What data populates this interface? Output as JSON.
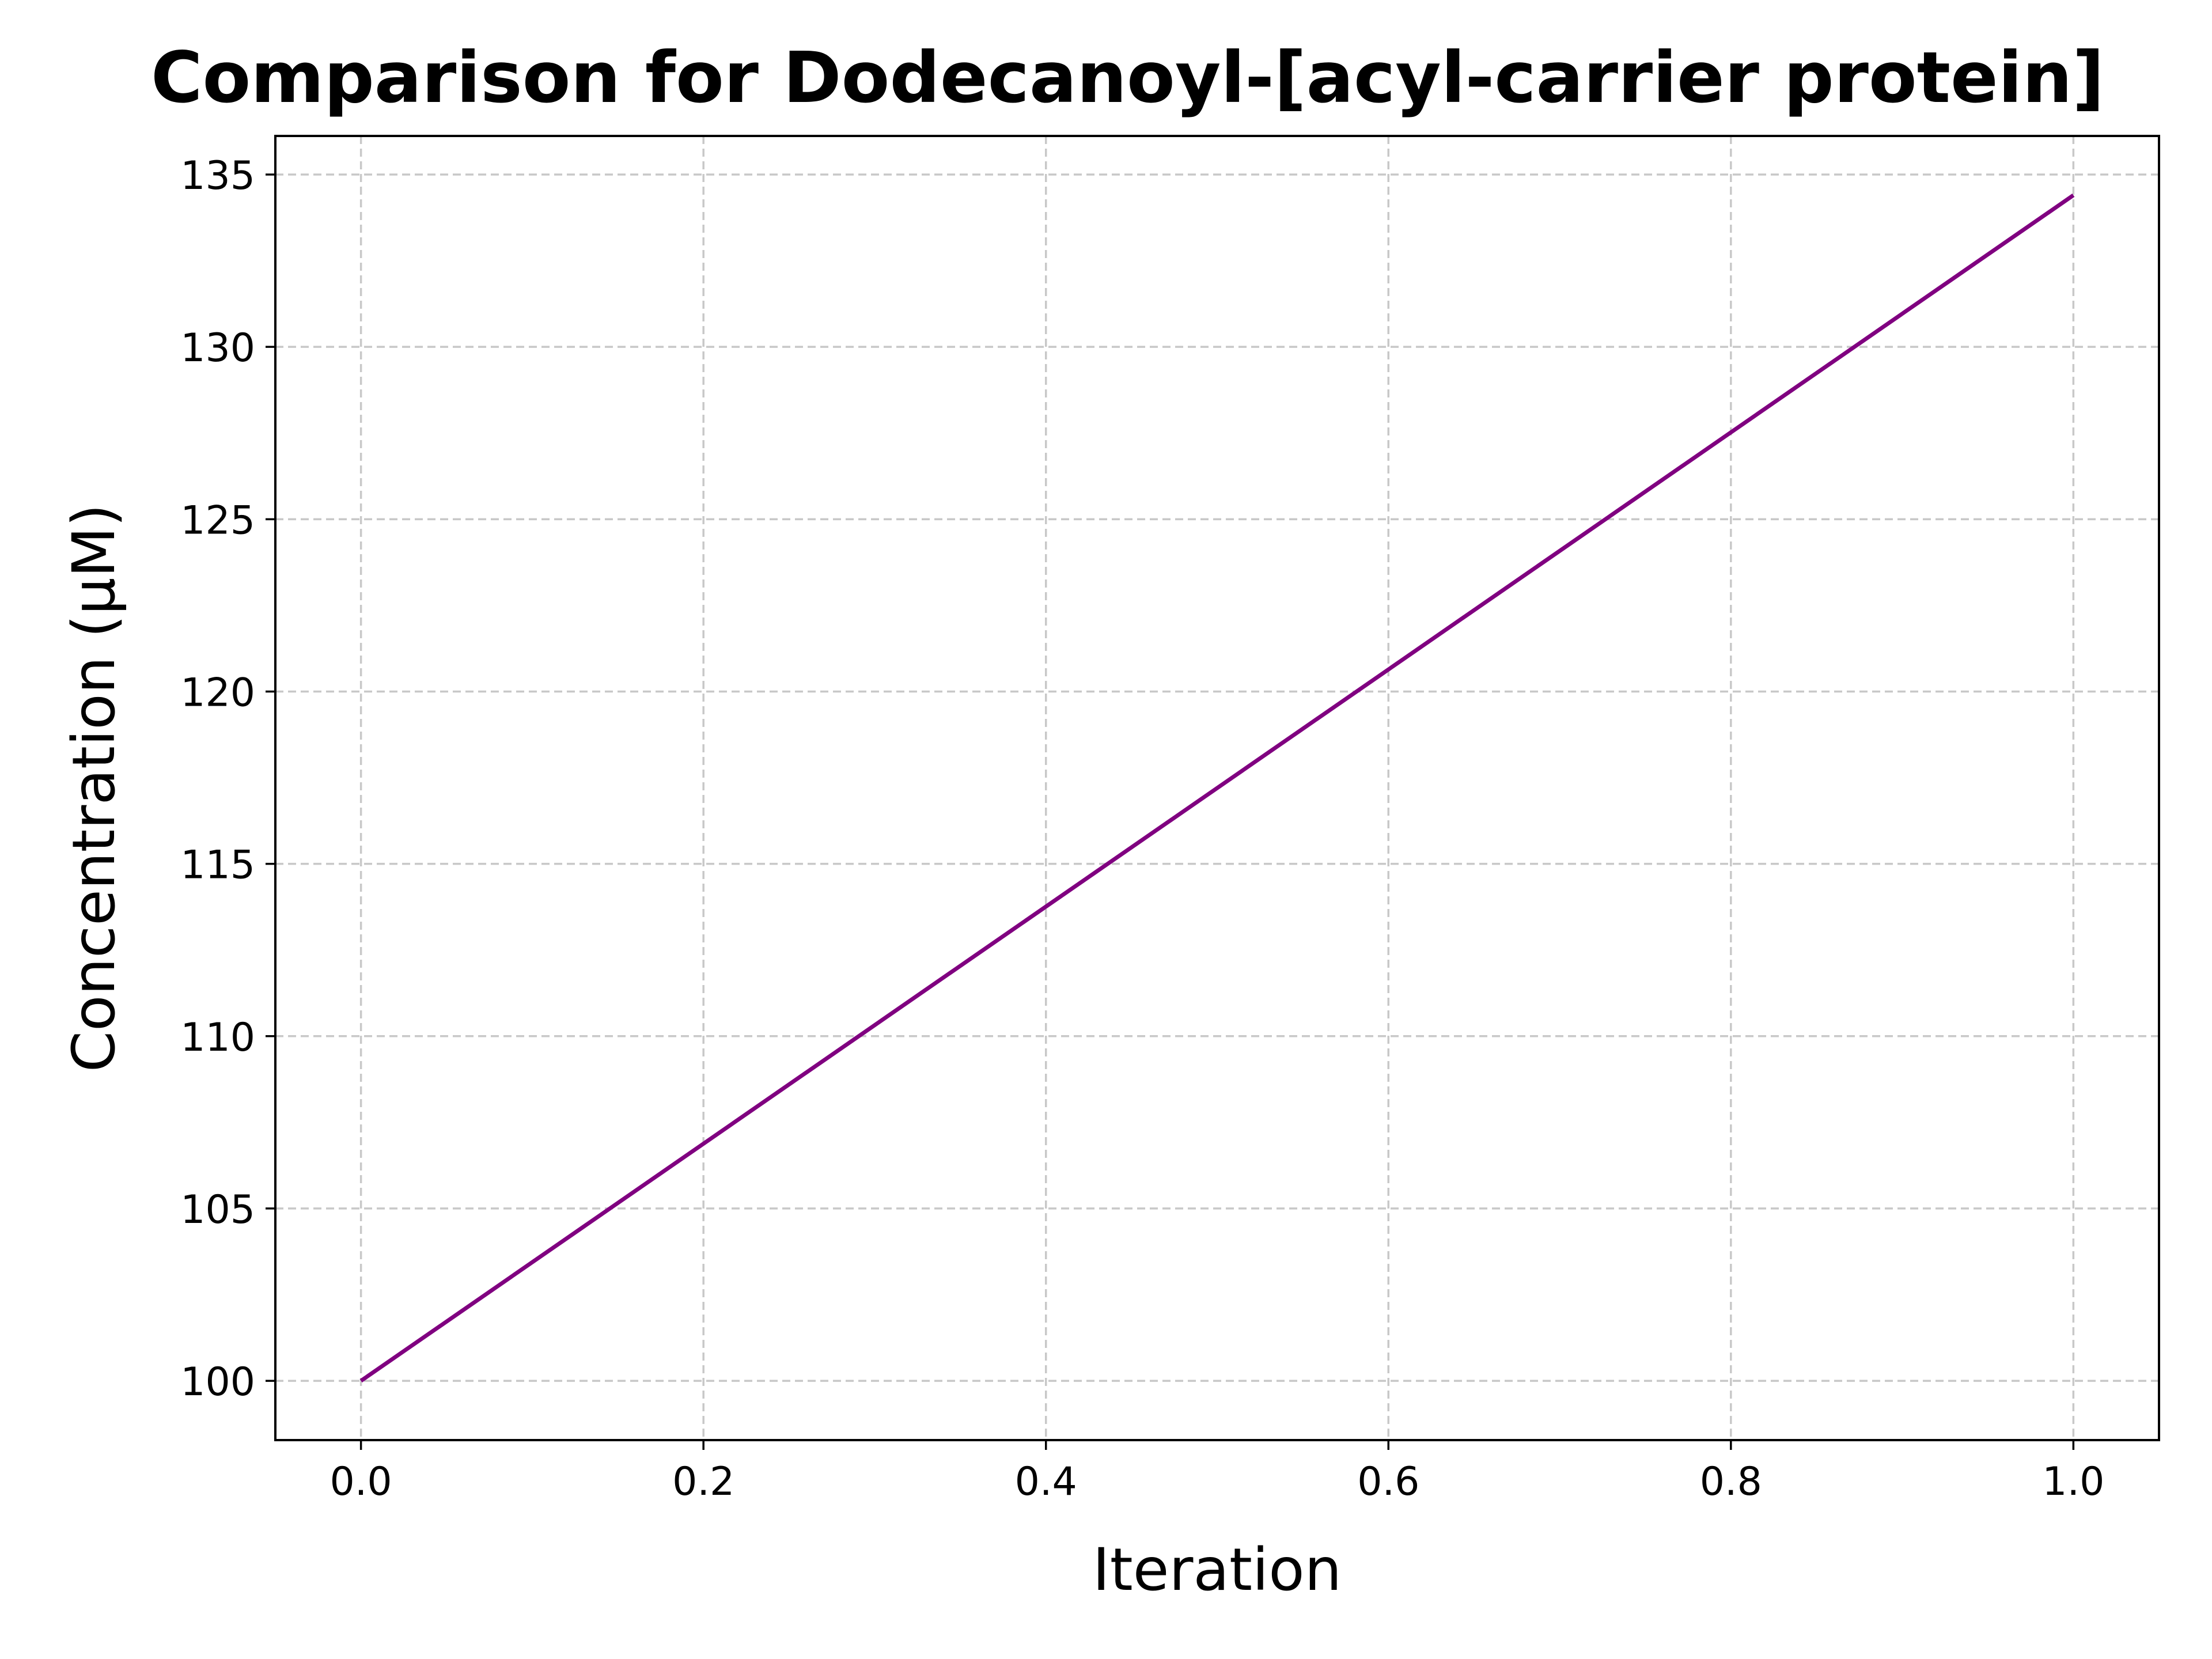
{
  "chart_data": {
    "type": "line",
    "title": "Comparison for Dodecanoyl-[acyl-carrier protein]",
    "xlabel": "Iteration",
    "ylabel": "Concentration (μM)",
    "x": [
      0.0,
      1.0
    ],
    "series": [
      {
        "values": [
          100.0,
          134.4
        ],
        "color": "#800080"
      }
    ],
    "xlim": [
      -0.05,
      1.05
    ],
    "ylim": [
      98.28,
      136.12
    ],
    "xticks": [
      0.0,
      0.2,
      0.4,
      0.6,
      0.8,
      1.0
    ],
    "xtick_labels": [
      "0.0",
      "0.2",
      "0.4",
      "0.6",
      "0.8",
      "1.0"
    ],
    "yticks": [
      100,
      105,
      110,
      115,
      120,
      125,
      130,
      135
    ],
    "ytick_labels": [
      "100",
      "105",
      "110",
      "115",
      "120",
      "125",
      "130",
      "135"
    ],
    "grid": true,
    "grid_style": "dashed",
    "legend": false
  }
}
